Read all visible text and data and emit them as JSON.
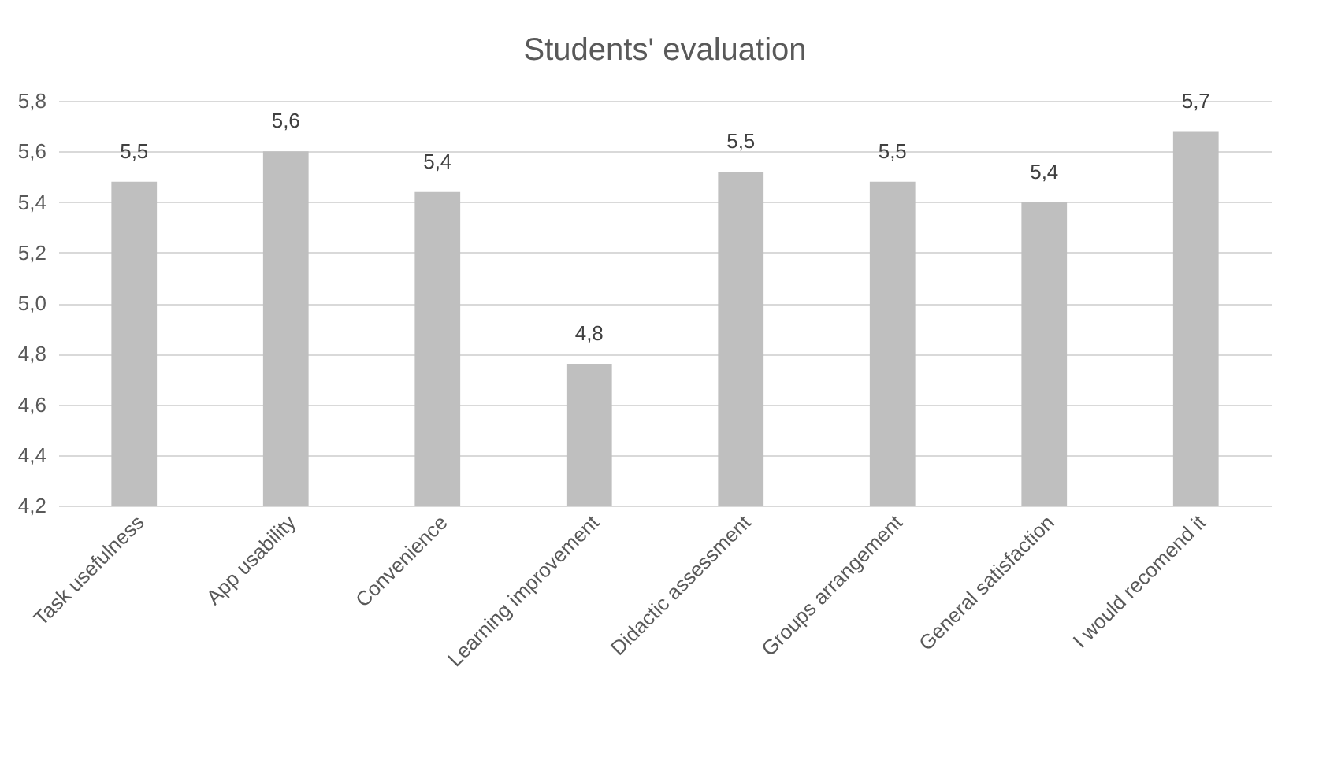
{
  "chart_data": {
    "type": "bar",
    "title": "Students' evaluation",
    "categories": [
      "Task usefulness",
      "App usability",
      "Convenience",
      "Learning improvement",
      "Didactic assessment",
      "Groups arrangement",
      "General satisfaction",
      "I would recomend it"
    ],
    "values": [
      5.48,
      5.6,
      5.44,
      4.76,
      5.52,
      5.48,
      5.4,
      5.68
    ],
    "value_labels": [
      "5,5",
      "5,6",
      "5,4",
      "4,8",
      "5,5",
      "5,5",
      "5,4",
      "5,7"
    ],
    "color": "#bfbfbf",
    "ylim": [
      4.2,
      5.8
    ],
    "yticks": [
      {
        "value": 4.2,
        "label": "4,2"
      },
      {
        "value": 4.4,
        "label": "4,4"
      },
      {
        "value": 4.6,
        "label": "4,6"
      },
      {
        "value": 4.8,
        "label": "4,8"
      },
      {
        "value": 5.0,
        "label": "5,0"
      },
      {
        "value": 5.2,
        "label": "5,2"
      },
      {
        "value": 5.4,
        "label": "5,4"
      },
      {
        "value": 5.6,
        "label": "5,6"
      },
      {
        "value": 5.8,
        "label": "5,8"
      }
    ],
    "grid": "y"
  }
}
